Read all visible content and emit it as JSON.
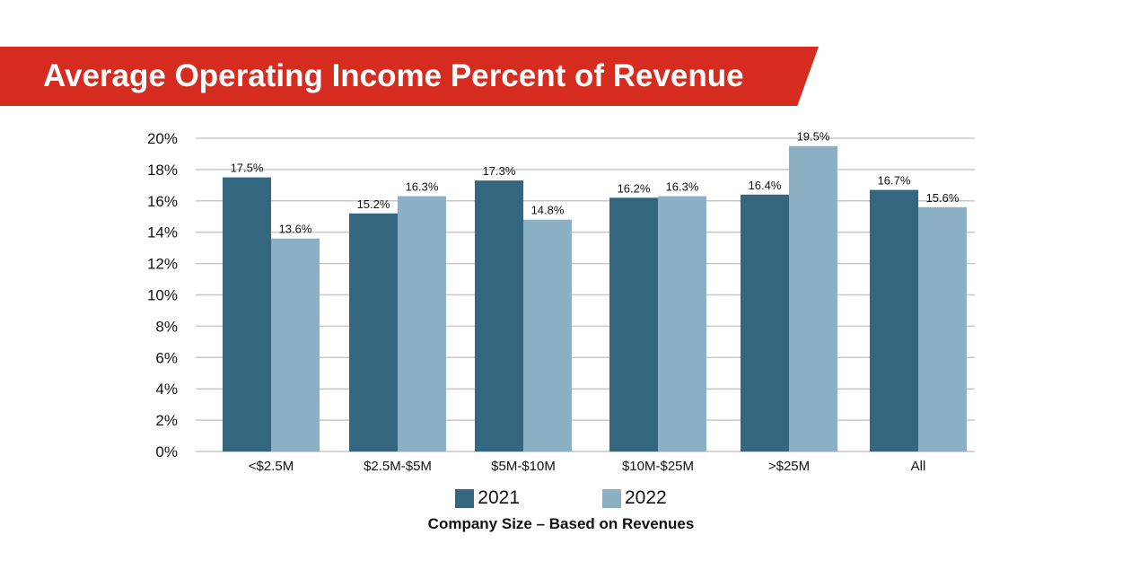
{
  "title": "Average Operating Income Percent of Revenue",
  "colors": {
    "banner": "#d62b1f",
    "series_2021": "#34677f",
    "series_2022": "#8bb0c3",
    "grid": "#c8c8c8"
  },
  "chart_data": {
    "type": "bar",
    "title": "Average Operating Income Percent of Revenue",
    "xlabel": "Company Size – Based on Revenues",
    "ylabel": "",
    "ylim": [
      0,
      20
    ],
    "yticks": [
      "0%",
      "2%",
      "4%",
      "6%",
      "8%",
      "10%",
      "12%",
      "14%",
      "16%",
      "18%",
      "20%"
    ],
    "categories": [
      "<$2.5M",
      "$2.5M-$5M",
      "$5M-$10M",
      "$10M-$25M",
      ">$25M",
      "All"
    ],
    "series": [
      {
        "name": "2021",
        "values": [
          17.5,
          15.2,
          17.3,
          16.2,
          16.4,
          16.7
        ],
        "labels": [
          "17.5%",
          "15.2%",
          "17.3%",
          "16.2%",
          "16.4%",
          "16.7%"
        ]
      },
      {
        "name": "2022",
        "values": [
          13.6,
          16.3,
          14.8,
          16.3,
          19.5,
          15.6
        ],
        "labels": [
          "13.6%",
          "16.3%",
          "14.8%",
          "16.3%",
          "19.5%",
          "15.6%"
        ]
      }
    ],
    "grid": true,
    "legend": "bottom-center"
  }
}
